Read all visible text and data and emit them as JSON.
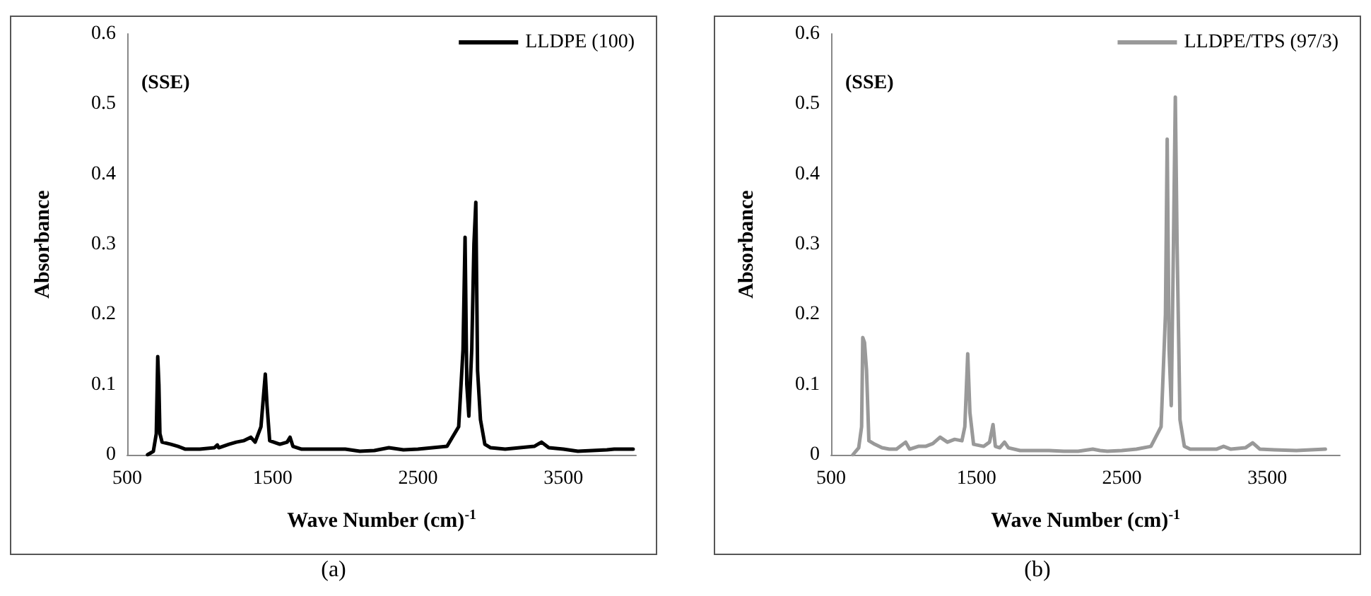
{
  "chart_data": [
    {
      "type": "line",
      "ylabel": "Absorbance",
      "xlabel": "Wave Number (cm)$^{-1}$",
      "annotations": [
        "(SSE)",
        "(a)"
      ],
      "legend": "top right",
      "grid": false,
      "marker": "none",
      "line_style": "solid",
      "xlim": [
        500,
        4000
      ],
      "xticks": [
        500,
        1500,
        2500,
        3500
      ],
      "ylim": [
        0,
        0.6
      ],
      "yticks": [
        0,
        0.1,
        0.2,
        0.3,
        0.4,
        0.5,
        0.6
      ],
      "series": [
        {
          "name": "LLDPE (100)",
          "color": "#000000",
          "x": [
            640,
            680,
            700,
            710,
            718,
            725,
            740,
            800,
            850,
            900,
            1000,
            1100,
            1120,
            1130,
            1200,
            1250,
            1300,
            1350,
            1380,
            1420,
            1450,
            1462,
            1480,
            1550,
            1600,
            1620,
            1640,
            1700,
            1800,
            2000,
            2100,
            2200,
            2300,
            2400,
            2500,
            2600,
            2700,
            2780,
            2810,
            2824,
            2836,
            2850,
            2870,
            2885,
            2898,
            2910,
            2930,
            2960,
            3000,
            3100,
            3200,
            3300,
            3350,
            3400,
            3500,
            3600,
            3700,
            3800,
            3850,
            3980
          ],
          "values": [
            0,
            0.005,
            0.03,
            0.14,
            0.1,
            0.03,
            0.018,
            0.015,
            0.012,
            0.008,
            0.008,
            0.01,
            0.014,
            0.01,
            0.015,
            0.018,
            0.02,
            0.025,
            0.018,
            0.04,
            0.115,
            0.07,
            0.02,
            0.015,
            0.018,
            0.025,
            0.012,
            0.008,
            0.008,
            0.008,
            0.005,
            0.006,
            0.01,
            0.007,
            0.008,
            0.01,
            0.012,
            0.04,
            0.15,
            0.31,
            0.1,
            0.055,
            0.15,
            0.3,
            0.36,
            0.12,
            0.05,
            0.015,
            0.01,
            0.008,
            0.01,
            0.012,
            0.018,
            0.01,
            0.008,
            0.005,
            0.006,
            0.007,
            0.008,
            0.008
          ]
        }
      ]
    },
    {
      "type": "line",
      "ylabel": "Absorbance",
      "xlabel": "Wave Number (cm)$^{-1}$",
      "annotations": [
        "(SSE)",
        "(b)"
      ],
      "legend": "top right",
      "grid": false,
      "marker": "none",
      "line_style": "solid",
      "xlim": [
        500,
        4000
      ],
      "xticks": [
        500,
        1500,
        2500,
        3500
      ],
      "ylim": [
        0,
        0.6
      ],
      "yticks": [
        0,
        0.1,
        0.2,
        0.3,
        0.4,
        0.5,
        0.6
      ],
      "series": [
        {
          "name": "LLDPE/TPS (97/3)",
          "color": "#999999",
          "x": [
            650,
            690,
            710,
            718,
            730,
            744,
            760,
            800,
            850,
            900,
            950,
            1013,
            1040,
            1100,
            1150,
            1200,
            1250,
            1300,
            1350,
            1400,
            1420,
            1440,
            1455,
            1480,
            1550,
            1590,
            1614,
            1630,
            1660,
            1693,
            1720,
            1800,
            1900,
            2000,
            2100,
            2200,
            2300,
            2350,
            2400,
            2500,
            2600,
            2700,
            2770,
            2800,
            2812,
            2825,
            2840,
            2855,
            2868,
            2880,
            2900,
            2930,
            2970,
            3050,
            3150,
            3200,
            3250,
            3350,
            3400,
            3450,
            3550,
            3700,
            3800,
            3900
          ],
          "values": [
            0,
            0.01,
            0.04,
            0.167,
            0.16,
            0.12,
            0.02,
            0.015,
            0.01,
            0.008,
            0.008,
            0.018,
            0.008,
            0.012,
            0.012,
            0.016,
            0.025,
            0.018,
            0.022,
            0.02,
            0.04,
            0.144,
            0.06,
            0.015,
            0.012,
            0.018,
            0.043,
            0.012,
            0.01,
            0.018,
            0.01,
            0.006,
            0.006,
            0.006,
            0.005,
            0.005,
            0.008,
            0.006,
            0.005,
            0.006,
            0.008,
            0.012,
            0.04,
            0.2,
            0.45,
            0.15,
            0.07,
            0.3,
            0.51,
            0.3,
            0.05,
            0.012,
            0.008,
            0.008,
            0.008,
            0.012,
            0.008,
            0.01,
            0.017,
            0.008,
            0.007,
            0.006,
            0.007,
            0.008
          ]
        }
      ]
    }
  ]
}
